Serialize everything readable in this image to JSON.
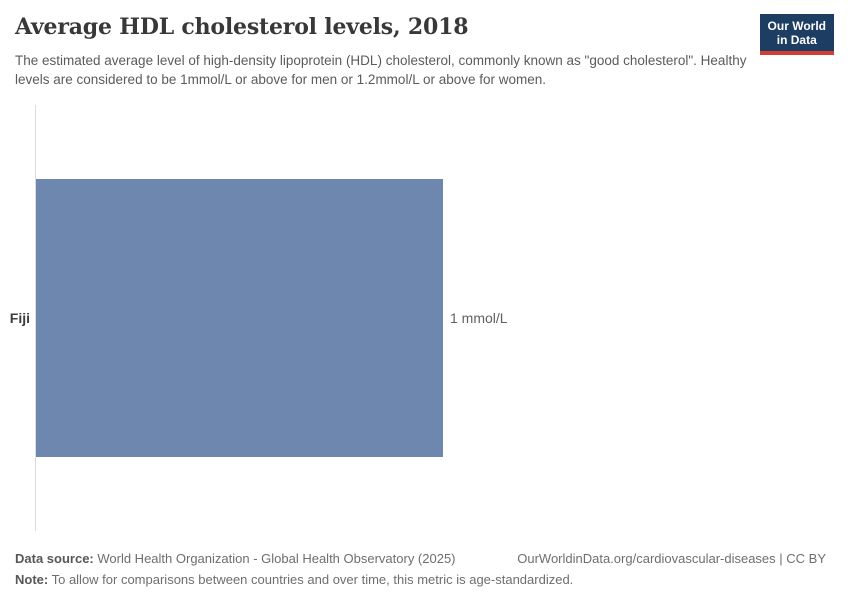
{
  "header": {
    "title": "Average HDL cholesterol levels, 2018",
    "subtitle": "The estimated average level of high-density lipoprotein (HDL) cholesterol, commonly known as \"good cholesterol\". Healthy levels are considered to be 1mmol/L or above for men or 1.2mmol/L or above for women.",
    "logo": {
      "line1": "Our World",
      "line2": "in Data",
      "bg_color": "#1d3d63",
      "stripe_color": "#d13d33"
    }
  },
  "chart_data": {
    "type": "bar",
    "orientation": "horizontal",
    "title": "Average HDL cholesterol levels, 2018",
    "categories": [
      "Fiji"
    ],
    "values": [
      1
    ],
    "value_labels": [
      "1 mmol/L"
    ],
    "unit": "mmol/L",
    "xlabel": "",
    "ylabel": "",
    "xlim": [
      0,
      1
    ],
    "grid": false,
    "legend": false,
    "bar_color": "#6e87af",
    "axis_color": "#dcdcdc"
  },
  "footer": {
    "data_source_label": "Data source:",
    "data_source_text": " World Health Organization - Global Health Observatory (2025)",
    "link_text": "OurWorldinData.org/cardiovascular-diseases | CC BY",
    "note_label": "Note:",
    "note_text": " To allow for comparisons between countries and over time, this metric is age-standardized."
  }
}
